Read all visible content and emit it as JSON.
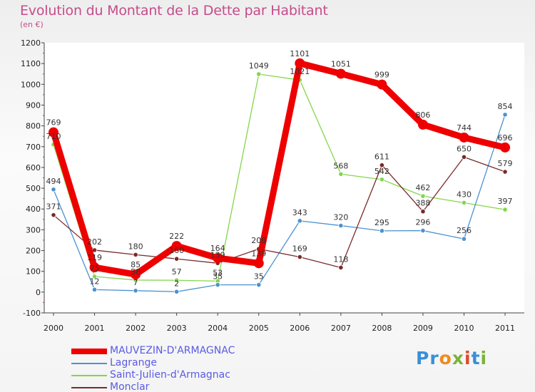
{
  "chart_data": {
    "type": "line",
    "title": "Evolution du Montant de la Dette par Habitant",
    "subtitle": "(en €)",
    "xlabel": "",
    "ylabel": "",
    "categories": [
      "2000",
      "2001",
      "2002",
      "2003",
      "2004",
      "2005",
      "2006",
      "2007",
      "2008",
      "2009",
      "2010",
      "2011"
    ],
    "ylim": [
      -100,
      1200
    ],
    "yticks": [
      -100,
      0,
      100,
      200,
      300,
      400,
      500,
      600,
      700,
      800,
      900,
      1000,
      1100,
      1200
    ],
    "grid": false,
    "legend_position": "bottom-left",
    "series": [
      {
        "name": "MAUVEZIN-D'ARMAGNAC",
        "color": "#ee0000",
        "values": [
          769,
          119,
          85,
          222,
          164,
          139,
          1101,
          1051,
          999,
          806,
          744,
          696
        ],
        "labels": [
          "769",
          "119",
          "85",
          "222",
          "164",
          "139",
          "1101",
          "1051",
          "999",
          "806",
          "744",
          "696"
        ]
      },
      {
        "name": "Lagrange",
        "color": "#4b92d0",
        "values": [
          494,
          12,
          7,
          2,
          35,
          35,
          343,
          320,
          295,
          296,
          256,
          854
        ],
        "labels": [
          "494",
          "12",
          "7",
          "2",
          "35",
          "35",
          "343",
          "320",
          "295",
          "296",
          "256",
          "854"
        ]
      },
      {
        "name": "Saint-Julien-d'Armagnac",
        "color": "#84d64a",
        "values": [
          710,
          75,
          58,
          57,
          53,
          1049,
          1021,
          568,
          542,
          462,
          430,
          397
        ],
        "labels": [
          "710",
          "75",
          "58",
          "57",
          "53",
          "1049",
          "1021",
          "568",
          "542",
          "462",
          "430",
          "397"
        ]
      },
      {
        "name": "Monclar",
        "color": "#7a2a2a",
        "values": [
          371,
          202,
          180,
          160,
          139,
          208,
          169,
          118,
          611,
          388,
          650,
          579
        ],
        "labels": [
          "371",
          "202",
          "180",
          "160",
          "139",
          "208",
          "169",
          "118",
          "611",
          "388",
          "650",
          "579"
        ]
      }
    ]
  },
  "logo": {
    "text": "Proxiti",
    "letters": [
      "P",
      "r",
      "o",
      "x",
      "i",
      "t",
      "i"
    ],
    "colors": [
      "#3a8fd8",
      "#3a8fd8",
      "#f08a1c",
      "#7ab33a",
      "#e04a2a",
      "#3a8fd8",
      "#7ab33a"
    ]
  }
}
